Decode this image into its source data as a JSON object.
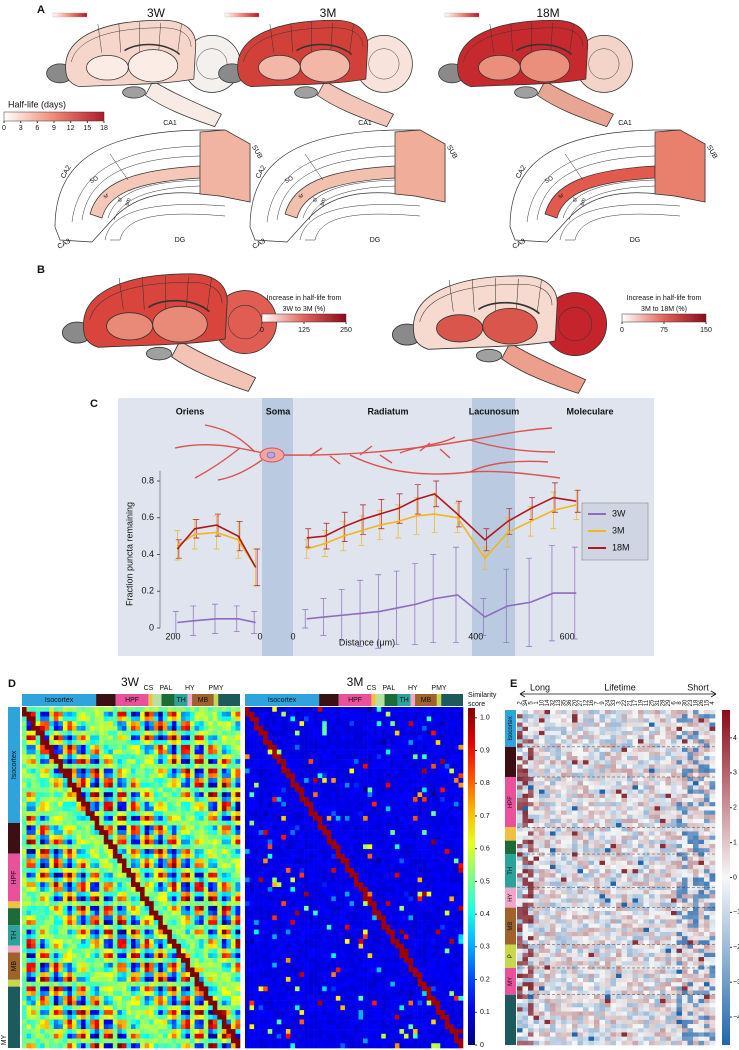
{
  "panel_a": {
    "label": "A",
    "columns": [
      "3W",
      "3M",
      "18M"
    ],
    "colorbar": {
      "title": "Half-life (days)",
      "lim": [
        0,
        18
      ],
      "ticks": [
        0,
        3,
        6,
        9,
        12,
        15,
        18
      ]
    },
    "hippocampus_labels": [
      "CA1",
      "SUB",
      "CA2",
      "SO",
      "sr",
      "sl",
      "sm",
      "CA3",
      "DG"
    ]
  },
  "panel_b": {
    "label": "B",
    "colorbars": [
      {
        "title": [
          "Increase in half-life from",
          "3W to 3M (%)"
        ],
        "lim": [
          0,
          250
        ],
        "ticks": [
          0,
          125,
          250
        ]
      },
      {
        "title": [
          "Increase in half-life from",
          "3M to 18M (%)"
        ],
        "lim": [
          0,
          150
        ],
        "ticks": [
          0,
          75,
          150
        ]
      }
    ]
  },
  "panel_c": {
    "label": "C",
    "type": "line",
    "layers": [
      "Oriens",
      "Soma",
      "Radiatum",
      "Lacunosum",
      "Moleculare"
    ],
    "ylabel": "Fraction puncta remaining",
    "xlabel": "Distance (μm)",
    "ylim": [
      0,
      0.8
    ],
    "yticks": [
      0,
      0.2,
      0.4,
      0.6,
      0.8
    ],
    "series": [
      {
        "name": "3W",
        "color": "#8e6bbf"
      },
      {
        "name": "3M",
        "color": "#f2b51c"
      },
      {
        "name": "18M",
        "color": "#b0171f"
      }
    ],
    "segments": [
      {
        "xlim": [
          200,
          0
        ],
        "xticks": [
          200,
          0
        ],
        "x": [
          190,
          150,
          100,
          50,
          10
        ],
        "values": [
          [
            0.03,
            0.04,
            0.05,
            0.05,
            0.03
          ],
          [
            0.45,
            0.51,
            0.52,
            0.48,
            0.33
          ],
          [
            0.43,
            0.54,
            0.56,
            0.5,
            0.33
          ]
        ],
        "errors": [
          [
            0.06,
            0.08,
            0.08,
            0.07,
            0.06
          ],
          [
            0.08,
            0.08,
            0.09,
            0.1,
            0.1
          ],
          [
            0.05,
            0.05,
            0.06,
            0.08,
            0.1
          ]
        ]
      },
      {
        "xlim": [
          0,
          650
        ],
        "xticks": [
          0,
          400,
          600
        ],
        "x": [
          30,
          70,
          110,
          150,
          190,
          230,
          270,
          310,
          360,
          420,
          470,
          520,
          570,
          620
        ],
        "values": [
          [
            0.05,
            0.06,
            0.07,
            0.08,
            0.09,
            0.11,
            0.13,
            0.16,
            0.18,
            0.06,
            0.12,
            0.14,
            0.19,
            0.19
          ],
          [
            0.43,
            0.46,
            0.5,
            0.53,
            0.56,
            0.58,
            0.61,
            0.62,
            0.6,
            0.38,
            0.52,
            0.58,
            0.64,
            0.67
          ],
          [
            0.49,
            0.5,
            0.55,
            0.59,
            0.62,
            0.65,
            0.7,
            0.73,
            0.62,
            0.48,
            0.58,
            0.65,
            0.71,
            0.69
          ]
        ],
        "errors": [
          [
            0.05,
            0.1,
            0.14,
            0.18,
            0.2,
            0.2,
            0.22,
            0.24,
            0.26,
            0.1,
            0.2,
            0.24,
            0.26,
            0.25
          ],
          [
            0.05,
            0.07,
            0.08,
            0.08,
            0.08,
            0.09,
            0.1,
            0.1,
            0.08,
            0.06,
            0.08,
            0.08,
            0.1,
            0.08
          ],
          [
            0.05,
            0.07,
            0.08,
            0.08,
            0.08,
            0.08,
            0.08,
            0.07,
            0.07,
            0.06,
            0.07,
            0.06,
            0.08,
            0.06
          ]
        ]
      }
    ]
  },
  "panel_d": {
    "label": "D",
    "titles": [
      "3W",
      "3M"
    ],
    "bar_labels": [
      "Isocortex",
      "HPF",
      "TH",
      "MB"
    ],
    "bar_top_labels": [
      "CS",
      "PAL",
      "HY",
      "PMY"
    ],
    "row_labels": [
      "Isocortex",
      "HPF",
      "TH",
      "MB",
      "MY"
    ],
    "colorbar": {
      "title": [
        "Similarity",
        "score"
      ],
      "lim": [
        0,
        1.03
      ],
      "ticks": [
        0,
        0.1,
        0.2,
        0.3,
        0.4,
        0.5,
        0.6,
        0.7,
        0.8,
        0.9,
        {
          "value": 1,
          "label": "1.0"
        }
      ]
    }
  },
  "panel_e": {
    "label": "E",
    "header": [
      "Long",
      "Lifetime",
      "Short"
    ],
    "columns": [
      "2",
      "34",
      "5",
      "1",
      "10",
      "14",
      "32",
      "13",
      "35",
      "36",
      "20",
      "27",
      "12",
      "16",
      "7",
      "9",
      "24",
      "33",
      "3",
      "22",
      "21",
      "17",
      "19",
      "11",
      "25",
      "31",
      "28",
      "29",
      "6",
      "8",
      "30",
      "23",
      "18",
      "26",
      "15",
      "4"
    ],
    "row_labels": [
      "Isocortex",
      "HPF",
      "TH",
      "HY",
      "MB",
      "P",
      "MY"
    ],
    "colorbar": {
      "lim": [
        -4.8,
        4.8
      ],
      "ticks": [
        4,
        3,
        2,
        1,
        0,
        {
          "value": -1,
          "label": "−1"
        },
        {
          "value": -2,
          "label": "−2"
        },
        {
          "value": -3,
          "label": "−3"
        },
        {
          "value": -4,
          "label": "−4"
        }
      ]
    }
  }
}
